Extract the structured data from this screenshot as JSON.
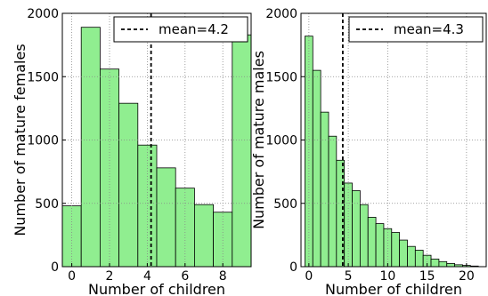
{
  "chart_data": [
    {
      "type": "histogram",
      "xlabel": "Number of children",
      "ylabel": "Number of mature females",
      "bins": [
        -0.5,
        0.5,
        1.5,
        2.5,
        3.5,
        4.5,
        5.5,
        6.5,
        7.5,
        8.5,
        9.5
      ],
      "values": [
        480,
        1890,
        1560,
        1290,
        960,
        780,
        620,
        490,
        430,
        1830
      ],
      "color": "#90ee90",
      "xlim": [
        -0.5,
        9.5
      ],
      "xticks": [
        0,
        2,
        4,
        6,
        8
      ],
      "ylim": [
        0,
        2000
      ],
      "yticks": [
        0,
        500,
        1000,
        1500,
        2000
      ],
      "grid": true,
      "legend": "upper right",
      "mean": {
        "value": 4.2,
        "label": "mean=4.2",
        "color": "#000000"
      }
    },
    {
      "type": "histogram",
      "xlabel": "Number of children",
      "ylabel": "Number of mature males",
      "bins": [
        -0.5,
        0.5,
        1.5,
        2.5,
        3.5,
        4.5,
        5.5,
        6.5,
        7.5,
        8.5,
        9.5,
        10.5,
        11.5,
        12.5,
        13.5,
        14.5,
        15.5,
        16.5,
        17.5,
        18.5,
        19.5,
        20.5,
        21.5
      ],
      "values": [
        1820,
        1550,
        1220,
        1030,
        840,
        660,
        600,
        490,
        390,
        340,
        300,
        270,
        210,
        160,
        130,
        90,
        60,
        40,
        25,
        15,
        10,
        5
      ],
      "color": "#90ee90",
      "xlim": [
        -1,
        22.5
      ],
      "xticks": [
        0,
        5,
        10,
        15,
        20
      ],
      "ylim": [
        0,
        2000
      ],
      "yticks": [
        0,
        500,
        1000,
        1500,
        2000
      ],
      "grid": true,
      "legend": "upper right",
      "mean": {
        "value": 4.3,
        "label": "mean=4.3",
        "color": "#000000"
      }
    }
  ]
}
